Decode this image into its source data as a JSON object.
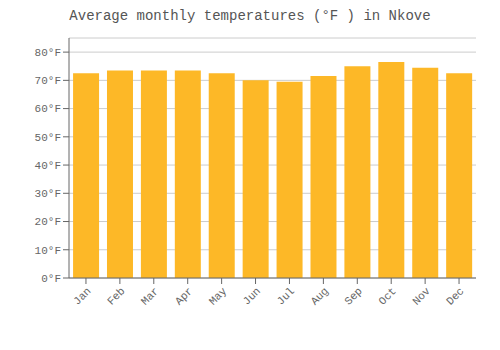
{
  "chart_data": {
    "type": "bar",
    "title": "Average monthly temperatures (°F ) in Nkove",
    "categories": [
      "Jan",
      "Feb",
      "Mar",
      "Apr",
      "May",
      "Jun",
      "Jul",
      "Aug",
      "Sep",
      "Oct",
      "Nov",
      "Dec"
    ],
    "values": [
      72.5,
      73.5,
      73.5,
      73.5,
      72.5,
      70.0,
      69.5,
      71.5,
      75.0,
      76.5,
      74.5,
      72.5
    ],
    "color": "#FDB827",
    "ylim": [
      0,
      85
    ],
    "yticks": [
      {
        "value": 0,
        "label": "0°F"
      },
      {
        "value": 10,
        "label": "10°F"
      },
      {
        "value": 20,
        "label": "20°F"
      },
      {
        "value": 30,
        "label": "30°F"
      },
      {
        "value": 40,
        "label": "40°F"
      },
      {
        "value": 50,
        "label": "50°F"
      },
      {
        "value": 60,
        "label": "60°F"
      },
      {
        "value": 70,
        "label": "70°F"
      },
      {
        "value": 80,
        "label": "80°F"
      }
    ],
    "grid": true
  }
}
